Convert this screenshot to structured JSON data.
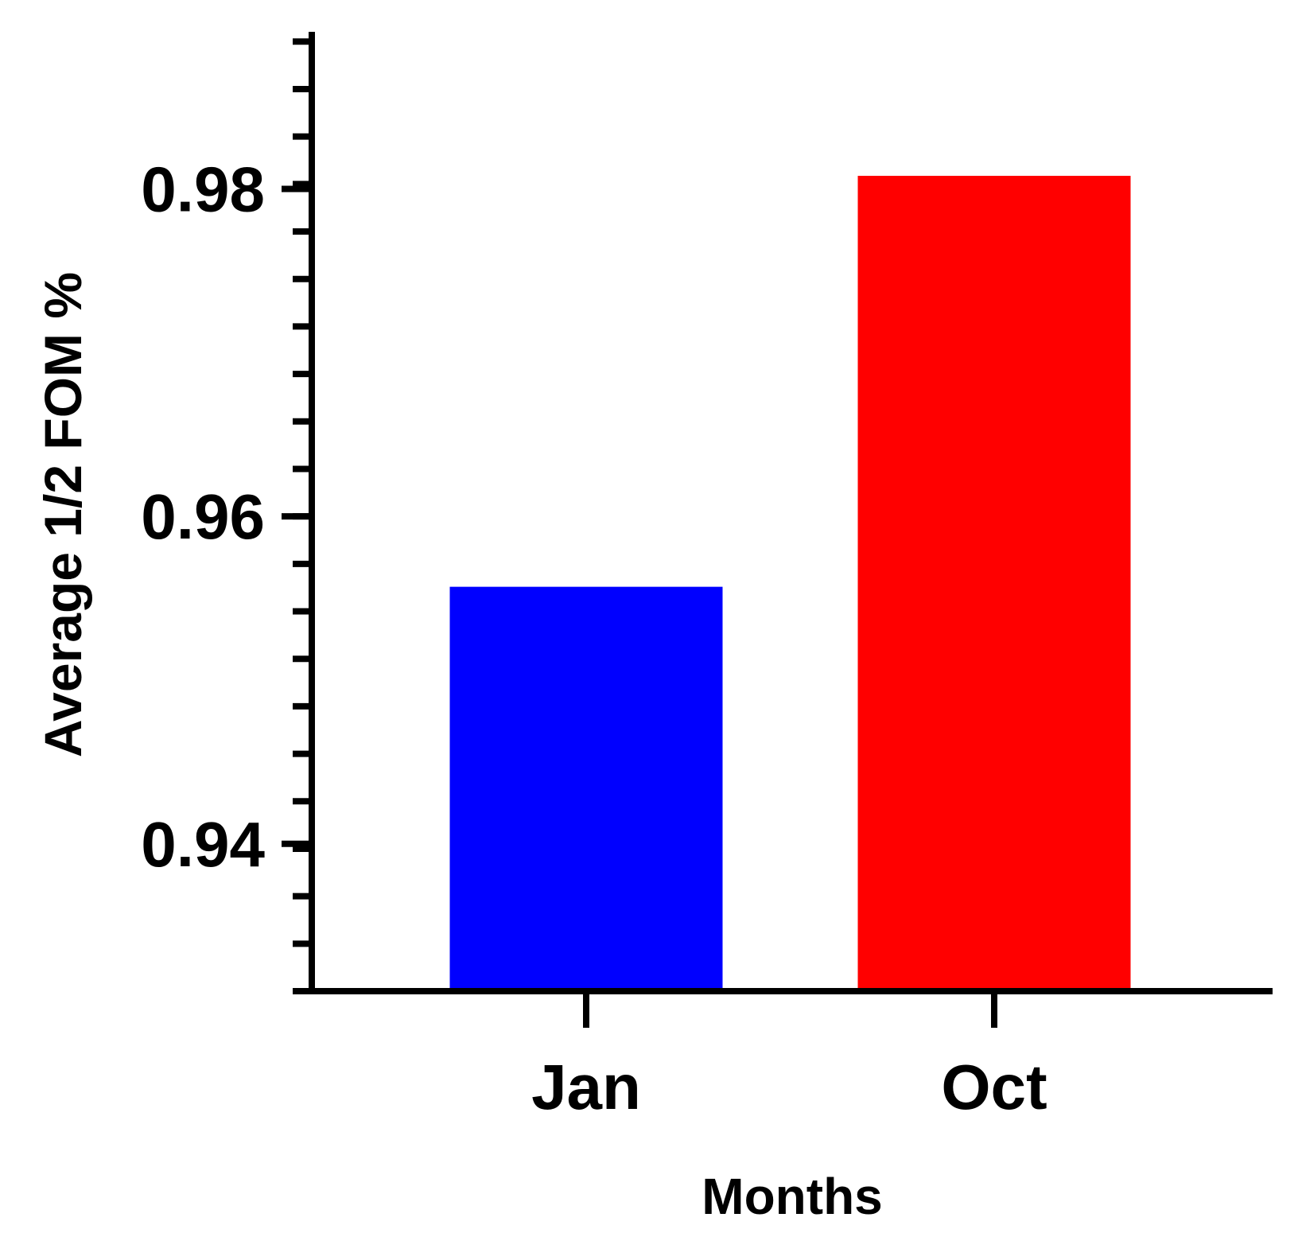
{
  "chart_data": {
    "type": "bar",
    "categories": [
      "Jan",
      "Oct"
    ],
    "values": [
      0.9557,
      0.9808
    ],
    "colors": [
      "#0000ff",
      "#ff0000"
    ],
    "title": "",
    "xlabel": "Months",
    "ylabel": "Average 1/2 FOM %",
    "ylim": [
      0.931,
      0.9895
    ],
    "yticks": [
      0.94,
      0.96,
      0.98
    ],
    "ytick_labels": [
      "0.94",
      "0.96",
      "0.98"
    ],
    "minor_tick_step": 0.0029,
    "grid": false,
    "legend": "none"
  }
}
